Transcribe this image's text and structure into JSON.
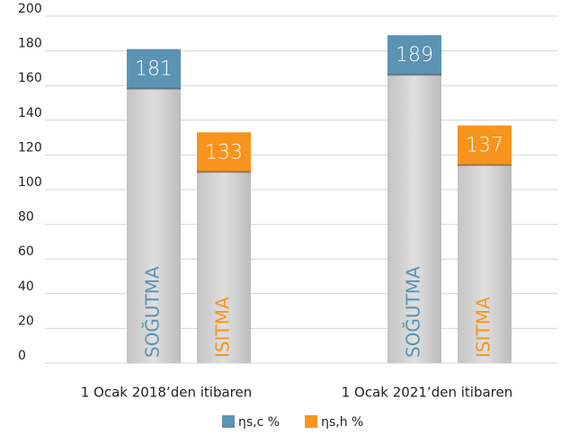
{
  "chart_data": {
    "type": "bar",
    "categories": [
      "1 Ocak 2018’den itibaren",
      "1 Ocak 2021’den itibaren"
    ],
    "series": [
      {
        "name": "ηs,c %",
        "color": "#5b93b4",
        "bar_text": "SOĞUTMA",
        "values": [
          181,
          189
        ]
      },
      {
        "name": "ηs,h %",
        "color": "#f7941d",
        "bar_text": "ISITMA",
        "values": [
          133,
          137
        ]
      }
    ],
    "ylim": [
      0,
      200
    ],
    "yticks": [
      0,
      20,
      40,
      60,
      80,
      100,
      120,
      140,
      160,
      180,
      200
    ],
    "grid": true,
    "legend": "bottom"
  }
}
